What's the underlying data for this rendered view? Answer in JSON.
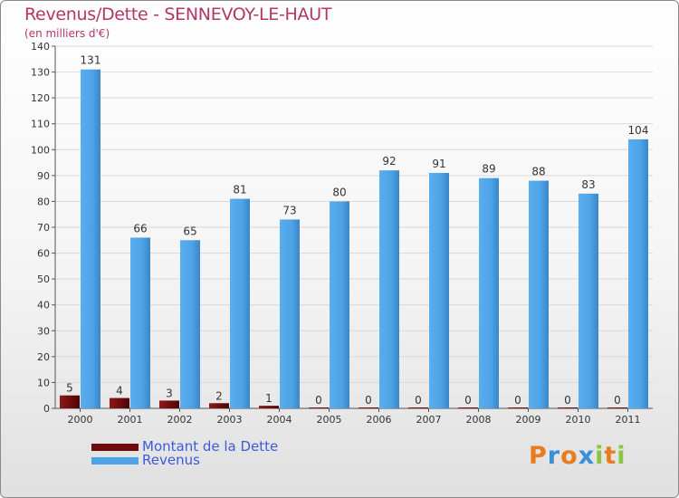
{
  "header": {
    "title": "Revenus/Dette - SENNEVOY-LE-HAUT",
    "subtitle": "(en milliers d'€)"
  },
  "logo": {
    "letters": [
      "P",
      "r",
      "o",
      "x",
      "i",
      "t",
      "i"
    ],
    "colors": [
      "#e87c1e",
      "#3a8fd8",
      "#e87c1e",
      "#3a8fd8",
      "#8cc63f",
      "#e87c1e",
      "#8cc63f"
    ]
  },
  "colors": {
    "debt": "#6b0b0b",
    "revenue": "#4da3e6",
    "axis": "#555555",
    "grid": "#d8d8d8"
  },
  "chart_data": {
    "type": "bar",
    "title": "Revenus/Dette - SENNEVOY-LE-HAUT",
    "subtitle": "(en milliers d'€)",
    "categories": [
      "2000",
      "2001",
      "2002",
      "2003",
      "2004",
      "2005",
      "2006",
      "2007",
      "2008",
      "2009",
      "2010",
      "2011"
    ],
    "series": [
      {
        "name": "Montant de la Dette",
        "values": [
          5,
          4,
          3,
          2,
          1,
          0,
          0,
          0,
          0,
          0,
          0,
          0
        ]
      },
      {
        "name": "Revenus",
        "values": [
          131,
          66,
          65,
          81,
          73,
          80,
          92,
          91,
          89,
          88,
          83,
          104
        ]
      }
    ],
    "ylim": [
      0,
      140
    ],
    "yticks": [
      "0",
      "10",
      "20",
      "30",
      "40",
      "50",
      "60",
      "70",
      "80",
      "90",
      "100",
      "110",
      "120",
      "130",
      "140"
    ],
    "legend": "bottom-left",
    "grid": true
  }
}
